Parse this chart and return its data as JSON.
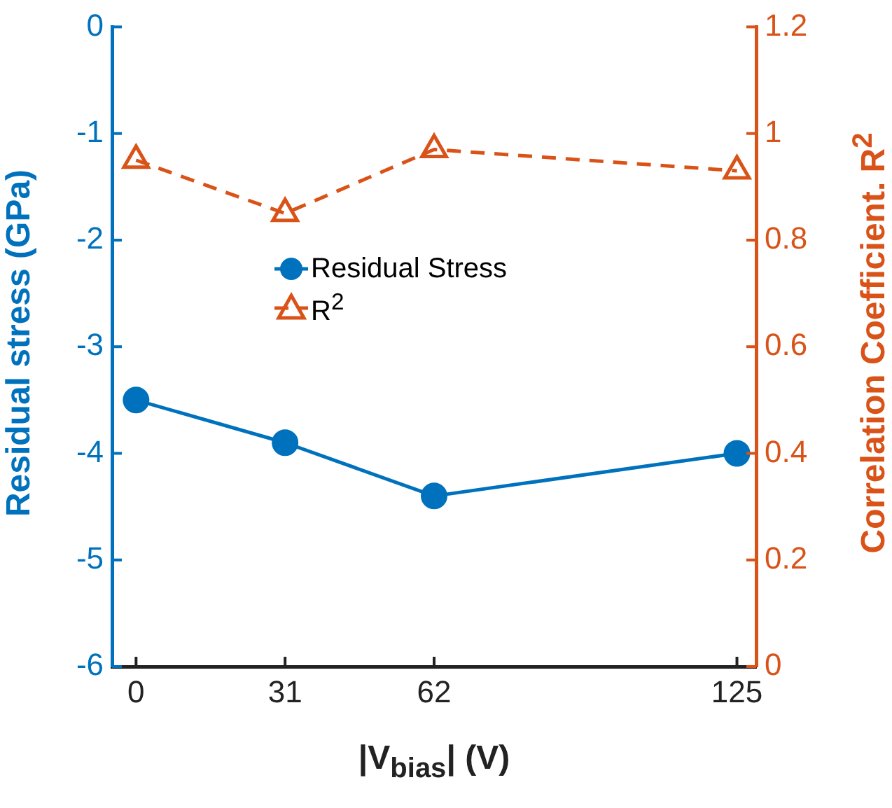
{
  "chart_data": {
    "type": "line",
    "xlabel": "|V$_{bias}$| (V)",
    "ylabel": "Residual stress (GPa)",
    "y2label": "Correlation Coefficient. R$^{2}$",
    "x": [
      0,
      31,
      62,
      125
    ],
    "series": [
      {
        "name": "Residual Stress",
        "color": "#0072bd",
        "values": [
          -3.5,
          -3.9,
          -4.4,
          -4.0
        ],
        "marker": "circle",
        "line_style": "solid"
      },
      {
        "name": "R$^{2}$",
        "color": "#d95319",
        "values": [
          0.95,
          0.85,
          0.97,
          0.93
        ],
        "marker": "triangle",
        "line_style": "dashed",
        "axis": "y2"
      }
    ],
    "xlim": [
      -5,
      129
    ],
    "xticks": [
      0,
      31,
      62,
      125
    ],
    "ylim": [
      -6,
      0
    ],
    "yticks": [
      -6,
      -5,
      -4,
      -3,
      -2,
      -1,
      0
    ],
    "y2lim": [
      0,
      1.2
    ],
    "y2ticks": [
      0,
      0.2,
      0.4,
      0.6,
      0.8,
      1,
      1.2
    ],
    "grid": false,
    "legend": "left"
  }
}
